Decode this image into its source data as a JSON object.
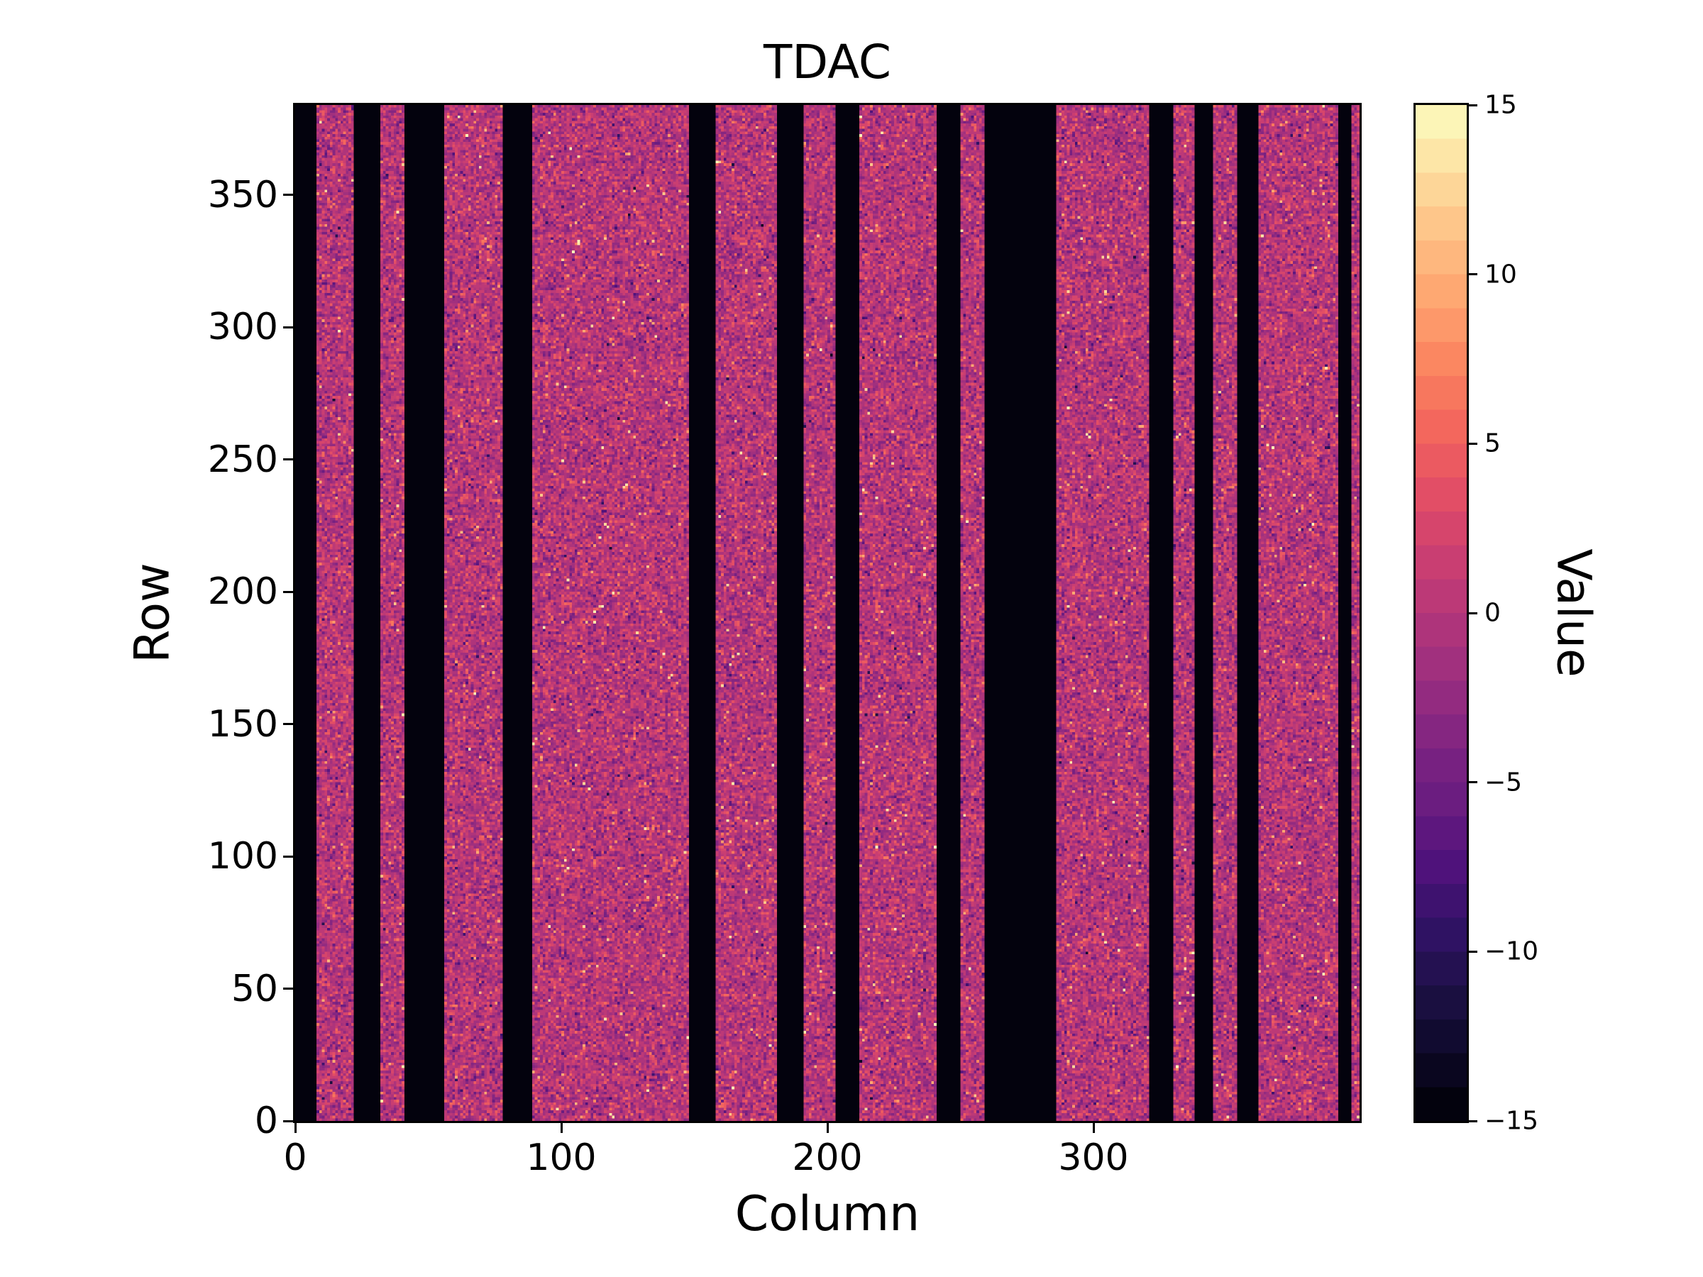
{
  "figure": {
    "background": "#ffffff"
  },
  "chart_data": {
    "type": "heatmap",
    "title": "TDAC",
    "xlabel": "Column",
    "ylabel": "Row",
    "colorbar_label": "Value",
    "xlim": [
      0,
      400
    ],
    "ylim": [
      0,
      384
    ],
    "vmin": -15,
    "vmax": 15,
    "n_color_levels": 30,
    "colormap": "magma",
    "colormap_stops": [
      {
        "t": 0.0,
        "color": "#000004"
      },
      {
        "t": 0.0625,
        "color": "#0c0826"
      },
      {
        "t": 0.125,
        "color": "#1c1044"
      },
      {
        "t": 0.1875,
        "color": "#301265"
      },
      {
        "t": 0.25,
        "color": "#4f127b"
      },
      {
        "t": 0.3125,
        "color": "#691c80"
      },
      {
        "t": 0.375,
        "color": "#812581"
      },
      {
        "t": 0.4375,
        "color": "#9c2e7f"
      },
      {
        "t": 0.5,
        "color": "#b5367a"
      },
      {
        "t": 0.5625,
        "color": "#ce4070"
      },
      {
        "t": 0.625,
        "color": "#e55064"
      },
      {
        "t": 0.6875,
        "color": "#f4695c"
      },
      {
        "t": 0.75,
        "color": "#fb8761"
      },
      {
        "t": 0.8125,
        "color": "#fea671"
      },
      {
        "t": 0.875,
        "color": "#fec287"
      },
      {
        "t": 0.9375,
        "color": "#fde0a1"
      },
      {
        "t": 1.0,
        "color": "#fcfdbf"
      }
    ],
    "x_tick_values": [
      0,
      100,
      200,
      300
    ],
    "x_tick_labels": [
      "0",
      "100",
      "200",
      "300"
    ],
    "y_tick_values": [
      0,
      50,
      100,
      150,
      200,
      250,
      300,
      350
    ],
    "y_tick_labels": [
      "0",
      "50",
      "100",
      "150",
      "200",
      "250",
      "300",
      "350"
    ],
    "colorbar_tick_values": [
      15,
      10,
      5,
      0,
      -5,
      -10,
      -15
    ],
    "colorbar_tick_labels": [
      "15",
      "10",
      "5",
      "0",
      "−5",
      "−10",
      "−15"
    ],
    "grid": {
      "rows": 384,
      "cols": 400
    },
    "masked_value": -15,
    "masked_column_ranges_end_exclusive": [
      [
        0,
        8
      ],
      [
        22,
        32
      ],
      [
        41,
        56
      ],
      [
        78,
        89
      ],
      [
        148,
        158
      ],
      [
        181,
        191
      ],
      [
        203,
        212
      ],
      [
        241,
        250
      ],
      [
        259,
        286
      ],
      [
        321,
        330
      ],
      [
        338,
        345
      ],
      [
        354,
        362
      ],
      [
        392,
        397
      ]
    ],
    "noise": {
      "mean": 0,
      "std": 2.4,
      "bright_outlier_prob": 0.02,
      "very_bright_outlier_prob": 0.004,
      "dark_outlier_prob": 0.01,
      "seed": 7
    }
  }
}
